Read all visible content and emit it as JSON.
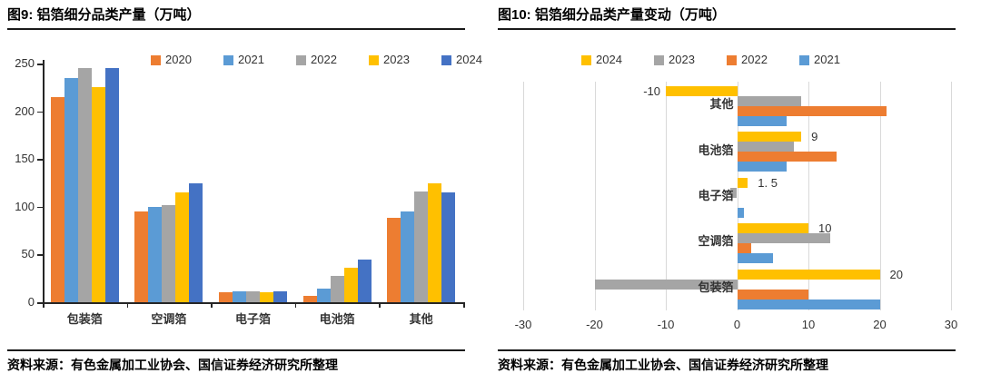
{
  "panels": [
    {
      "title": "图9: 铝箔细分品类产量（万吨）",
      "source": "资料来源：有色金属加工业协会、国信证券经济研究所整理"
    },
    {
      "title": "图10: 铝箔细分品类产量变动（万吨）",
      "source": "资料来源：有色金属加工业协会、国信证券经济研究所整理"
    }
  ],
  "chart_data": [
    {
      "type": "bar",
      "orientation": "vertical",
      "title": "图9: 铝箔细分品类产量（万吨）",
      "categories": [
        "包装箔",
        "空调箔",
        "电子箔",
        "电池箔",
        "其他"
      ],
      "series": [
        {
          "name": "2020",
          "color": "#ED7D31",
          "values": [
            215,
            95,
            10,
            7,
            88
          ]
        },
        {
          "name": "2021",
          "color": "#5B9BD5",
          "values": [
            235,
            100,
            11,
            14,
            95
          ]
        },
        {
          "name": "2022",
          "color": "#A5A5A5",
          "values": [
            245,
            102,
            11,
            28,
            116
          ]
        },
        {
          "name": "2023",
          "color": "#FFC000",
          "values": [
            225,
            115,
            10,
            36,
            125
          ]
        },
        {
          "name": "2024",
          "color": "#4472C4",
          "values": [
            245,
            125,
            11.5,
            45,
            115
          ]
        }
      ],
      "ylim": [
        0,
        250
      ],
      "yticks": [
        0,
        50,
        100,
        150,
        200,
        250
      ],
      "grid": false,
      "legend_position": "top"
    },
    {
      "type": "bar",
      "orientation": "horizontal",
      "title": "图10: 铝箔细分品类产量变动（万吨）",
      "categories": [
        "其他",
        "电池箔",
        "电子箔",
        "空调箔",
        "包装箔"
      ],
      "series": [
        {
          "name": "2024",
          "color": "#FFC000",
          "values": [
            -10,
            9,
            1.5,
            10,
            20
          ],
          "data_labels": [
            "-10",
            "9",
            "1. 5",
            "10",
            "20"
          ]
        },
        {
          "name": "2023",
          "color": "#A5A5A5",
          "values": [
            9,
            8,
            -1,
            13,
            -20
          ]
        },
        {
          "name": "2022",
          "color": "#ED7D31",
          "values": [
            21,
            14,
            0,
            2,
            10
          ]
        },
        {
          "name": "2021",
          "color": "#5B9BD5",
          "values": [
            7,
            7,
            1,
            5,
            20
          ]
        }
      ],
      "xlim": [
        -30,
        30
      ],
      "xticks": [
        -30,
        -20,
        -10,
        0,
        10,
        20,
        30
      ],
      "grid": true,
      "legend_position": "top"
    }
  ]
}
